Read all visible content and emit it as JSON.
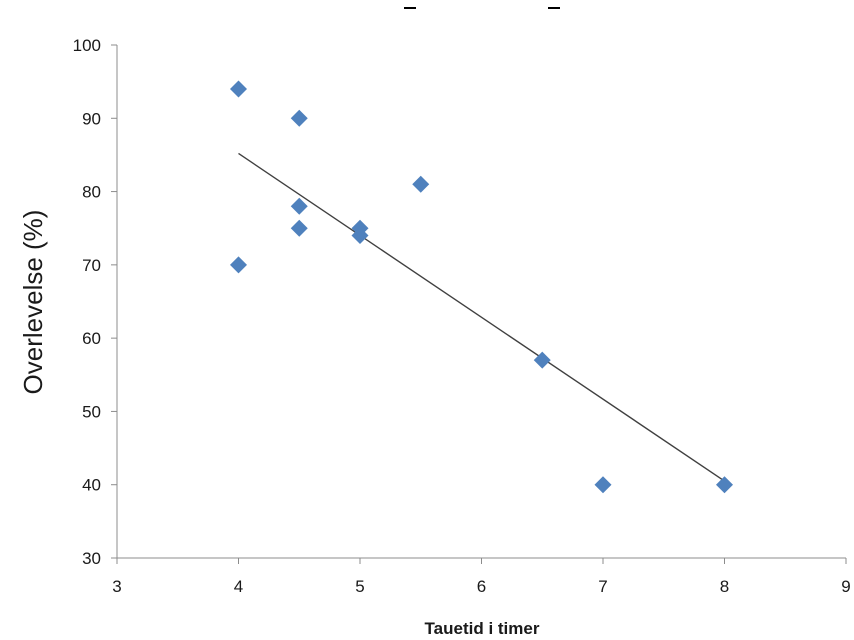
{
  "chart_data": {
    "type": "scatter",
    "title": "",
    "xlabel": "Tauetid i timer",
    "ylabel": "Overlevelse  (%)",
    "xlim": [
      3,
      9
    ],
    "ylim": [
      30,
      100
    ],
    "xticks": [
      3,
      4,
      5,
      6,
      7,
      8,
      9
    ],
    "yticks": [
      30,
      40,
      50,
      60,
      70,
      80,
      90,
      100
    ],
    "grid": false,
    "legend": "none",
    "series": [
      {
        "marker": "diamond",
        "color": "#4f81bd",
        "points": [
          {
            "x": 4,
            "y": 94
          },
          {
            "x": 4,
            "y": 70
          },
          {
            "x": 4.5,
            "y": 90
          },
          {
            "x": 4.5,
            "y": 78
          },
          {
            "x": 4.5,
            "y": 75
          },
          {
            "x": 5,
            "y": 75
          },
          {
            "x": 5,
            "y": 74
          },
          {
            "x": 5.5,
            "y": 81
          },
          {
            "x": 6.5,
            "y": 57
          },
          {
            "x": 7,
            "y": 40
          },
          {
            "x": 8,
            "y": 40
          }
        ]
      }
    ],
    "trendline": {
      "type": "linear",
      "color": "#404040",
      "from": {
        "x": 4,
        "y": 85.2
      },
      "to": {
        "x": 8,
        "y": 40.5
      }
    }
  }
}
